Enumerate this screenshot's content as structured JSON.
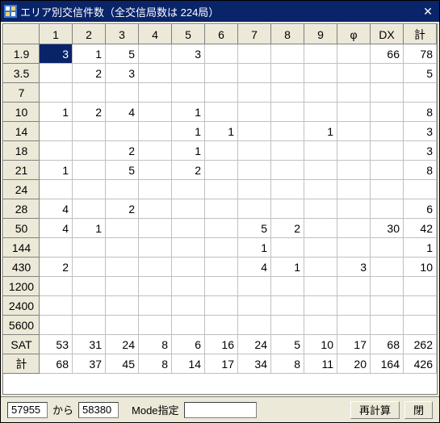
{
  "titlebar": {
    "title": "エリア別交信件数（全交信局数は 224局）",
    "close_glyph": "✕"
  },
  "columns": [
    "1",
    "2",
    "3",
    "4",
    "5",
    "6",
    "7",
    "8",
    "9",
    "φ",
    "DX",
    "計"
  ],
  "rows": [
    {
      "h": "1.9",
      "c": [
        "3",
        "1",
        "5",
        "",
        "3",
        "",
        "",
        "",
        "",
        "",
        "66",
        "78"
      ],
      "sel": 0
    },
    {
      "h": "3.5",
      "c": [
        "",
        "2",
        "3",
        "",
        "",
        "",
        "",
        "",
        "",
        "",
        "",
        "5"
      ]
    },
    {
      "h": "7",
      "c": [
        "",
        "",
        "",
        "",
        "",
        "",
        "",
        "",
        "",
        "",
        "",
        ""
      ]
    },
    {
      "h": "10",
      "c": [
        "1",
        "2",
        "4",
        "",
        "1",
        "",
        "",
        "",
        "",
        "",
        "",
        "8"
      ]
    },
    {
      "h": "14",
      "c": [
        "",
        "",
        "",
        "",
        "1",
        "1",
        "",
        "",
        "1",
        "",
        "",
        "3"
      ]
    },
    {
      "h": "18",
      "c": [
        "",
        "",
        "2",
        "",
        "1",
        "",
        "",
        "",
        "",
        "",
        "",
        "3"
      ]
    },
    {
      "h": "21",
      "c": [
        "1",
        "",
        "5",
        "",
        "2",
        "",
        "",
        "",
        "",
        "",
        "",
        "8"
      ]
    },
    {
      "h": "24",
      "c": [
        "",
        "",
        "",
        "",
        "",
        "",
        "",
        "",
        "",
        "",
        "",
        ""
      ]
    },
    {
      "h": "28",
      "c": [
        "4",
        "",
        "2",
        "",
        "",
        "",
        "",
        "",
        "",
        "",
        "",
        "6"
      ]
    },
    {
      "h": "50",
      "c": [
        "4",
        "1",
        "",
        "",
        "",
        "",
        "5",
        "2",
        "",
        "",
        "30",
        "42"
      ]
    },
    {
      "h": "144",
      "c": [
        "",
        "",
        "",
        "",
        "",
        "",
        "1",
        "",
        "",
        "",
        "",
        "1"
      ]
    },
    {
      "h": "430",
      "c": [
        "2",
        "",
        "",
        "",
        "",
        "",
        "4",
        "1",
        "",
        "3",
        "",
        "10"
      ]
    },
    {
      "h": "1200",
      "c": [
        "",
        "",
        "",
        "",
        "",
        "",
        "",
        "",
        "",
        "",
        "",
        ""
      ]
    },
    {
      "h": "2400",
      "c": [
        "",
        "",
        "",
        "",
        "",
        "",
        "",
        "",
        "",
        "",
        "",
        ""
      ]
    },
    {
      "h": "5600",
      "c": [
        "",
        "",
        "",
        "",
        "",
        "",
        "",
        "",
        "",
        "",
        "",
        ""
      ]
    },
    {
      "h": "SAT",
      "c": [
        "53",
        "31",
        "24",
        "8",
        "6",
        "16",
        "24",
        "5",
        "10",
        "17",
        "68",
        "262"
      ]
    },
    {
      "h": "計",
      "c": [
        "68",
        "37",
        "45",
        "8",
        "14",
        "17",
        "34",
        "8",
        "11",
        "20",
        "164",
        "426"
      ]
    }
  ],
  "bottom": {
    "from_value": "57955",
    "from_label": "から",
    "to_value": "58380",
    "mode_label": "Mode指定",
    "mode_value": "",
    "recalc_label": "再計算",
    "close_label": "閉"
  }
}
